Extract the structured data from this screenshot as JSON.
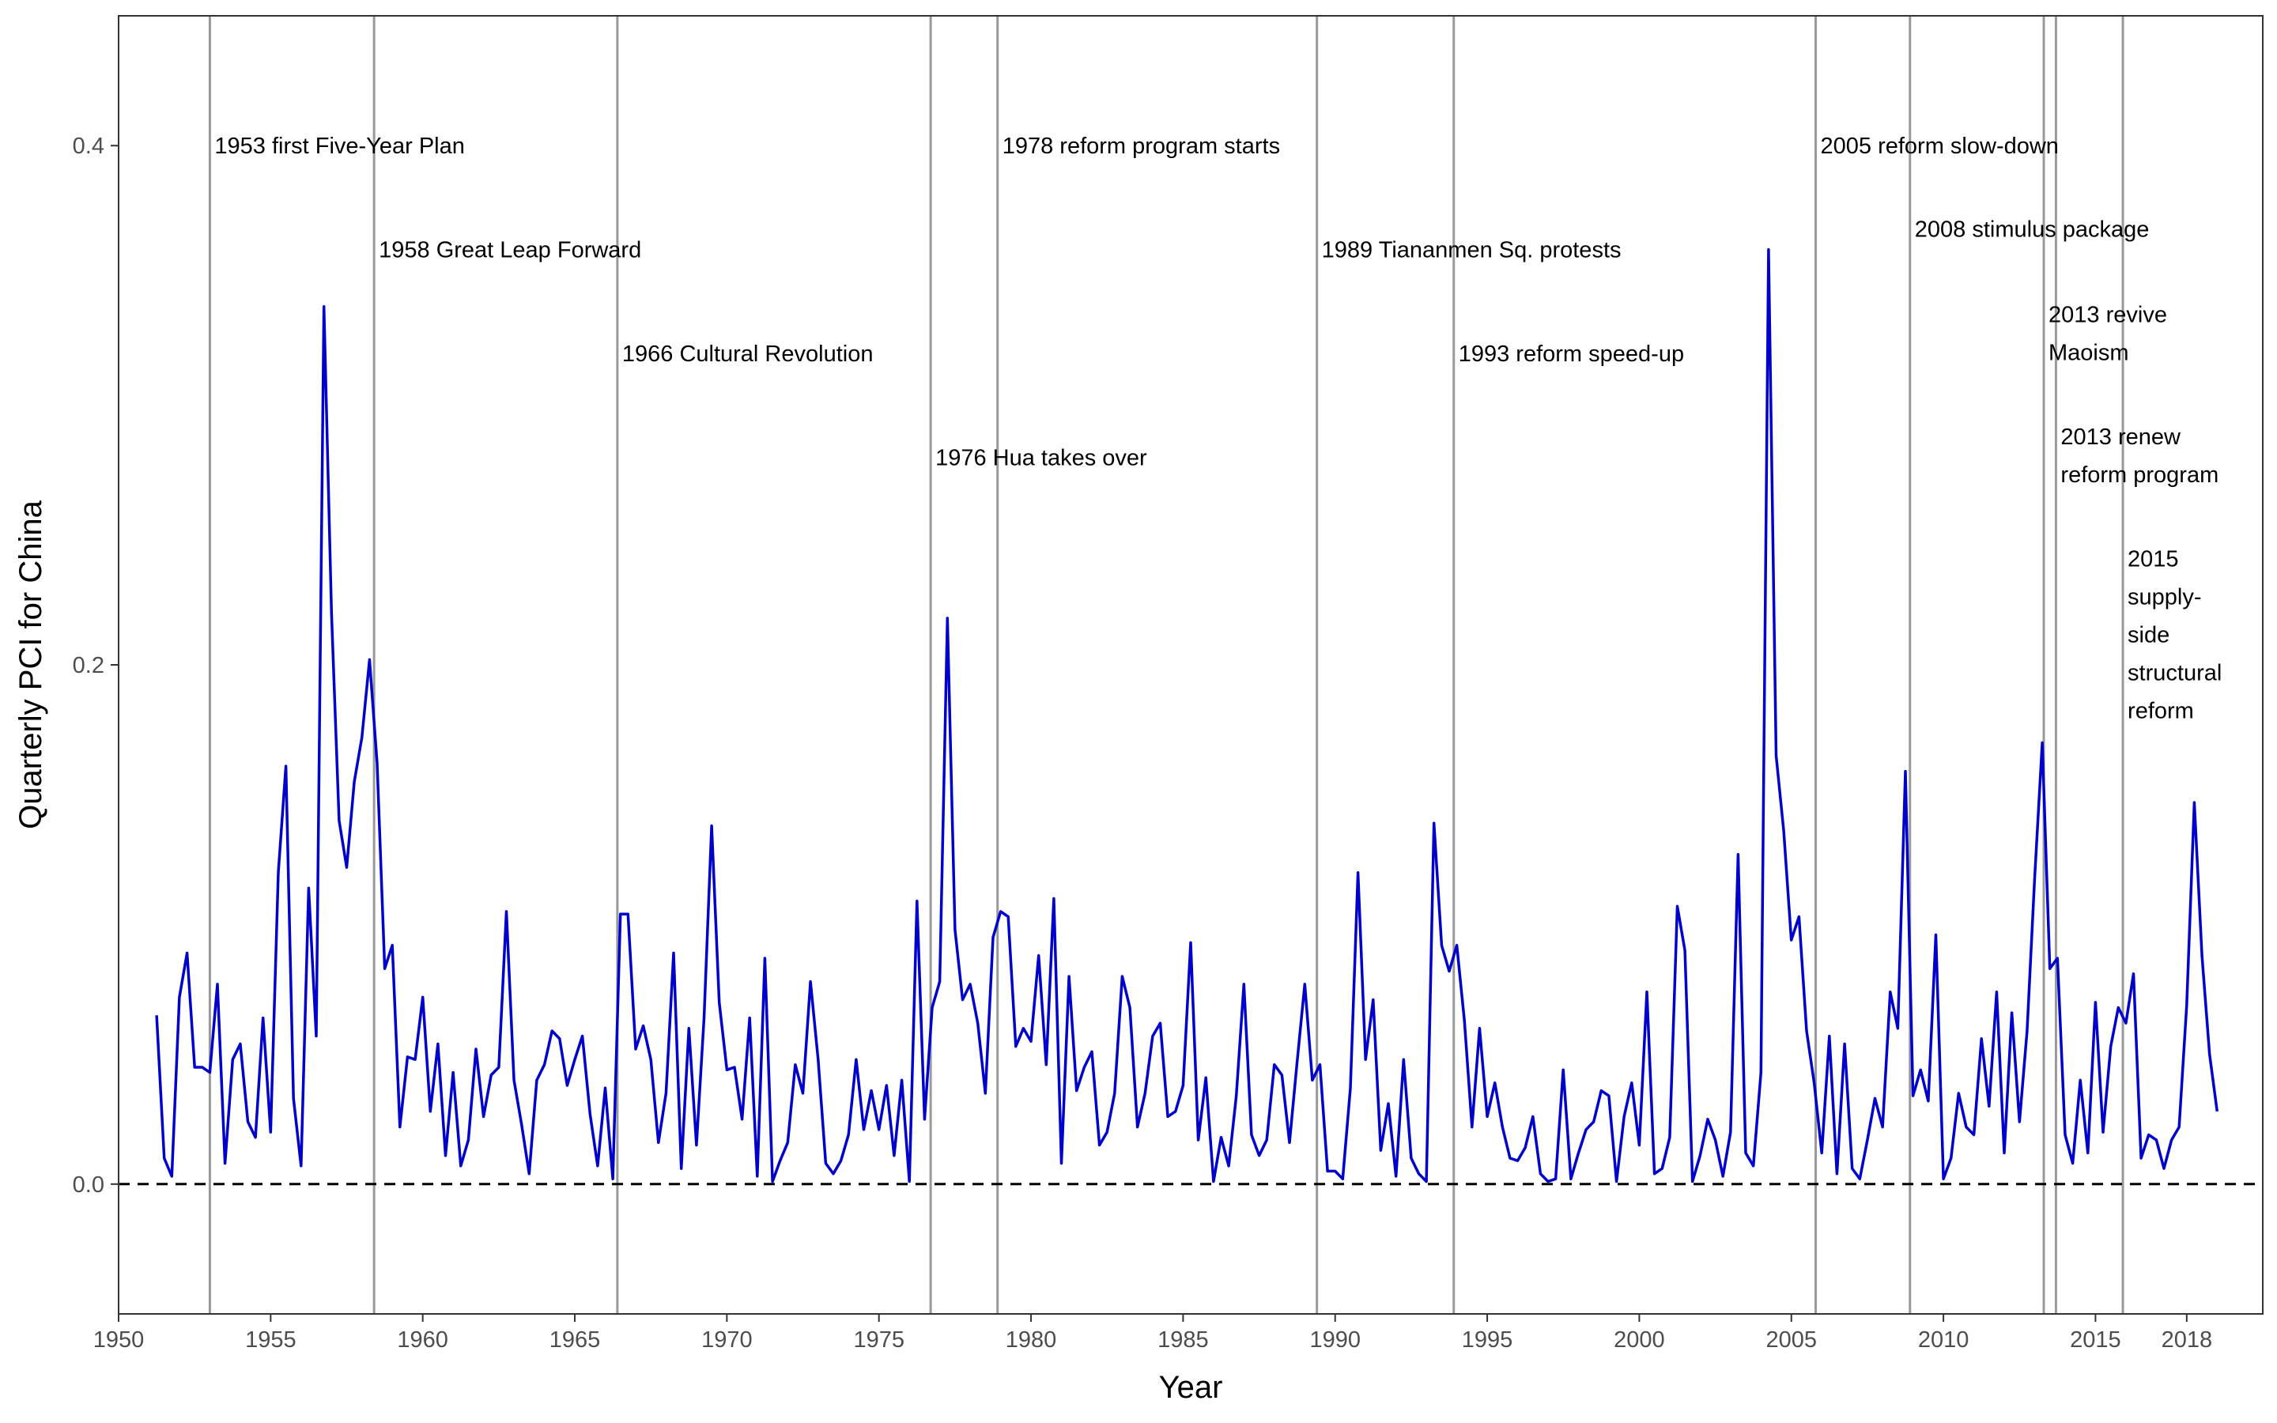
{
  "chart_data": {
    "type": "line",
    "title": "",
    "xlabel": "Year",
    "ylabel": "Quarterly PCI for China",
    "xlim": [
      1950,
      2020.5
    ],
    "ylim": [
      -0.05,
      0.45
    ],
    "x_ticks": [
      1950,
      1955,
      1960,
      1965,
      1970,
      1975,
      1980,
      1985,
      1990,
      1995,
      2000,
      2005,
      2010,
      2015,
      2018
    ],
    "y_ticks": [
      0.0,
      0.2,
      0.4
    ],
    "y_tick_labels": [
      "0.0",
      "0.2",
      "0.4"
    ],
    "grid": false,
    "reference_line": {
      "y": 0.0,
      "style": "dashed"
    },
    "events": [
      {
        "year": 1953.0,
        "lines": [
          "1953 first Five-Year Plan"
        ],
        "label_y": 0.4
      },
      {
        "year": 1958.4,
        "lines": [
          "1958 Great Leap Forward"
        ],
        "label_y": 0.36
      },
      {
        "year": 1966.4,
        "lines": [
          "1966 Cultural Revolution"
        ],
        "label_y": 0.32
      },
      {
        "year": 1976.7,
        "lines": [
          "1976 Hua takes over"
        ],
        "label_y": 0.28
      },
      {
        "year": 1978.9,
        "lines": [
          "1978 reform program starts"
        ],
        "label_y": 0.4
      },
      {
        "year": 1989.4,
        "lines": [
          "1989 Tiananmen Sq. protests"
        ],
        "label_y": 0.36
      },
      {
        "year": 1993.9,
        "lines": [
          "1993 reform speed-up"
        ],
        "label_y": 0.32
      },
      {
        "year": 2005.8,
        "lines": [
          "2005 reform slow-down"
        ],
        "label_y": 0.4
      },
      {
        "year": 2008.9,
        "lines": [
          "2008 stimulus package"
        ],
        "label_y": 0.368
      },
      {
        "year": 2013.3,
        "lines": [
          "2013 revive",
          "Maoism"
        ],
        "label_y": 0.335
      },
      {
        "year": 2013.7,
        "lines": [
          "2013 renew",
          "reform program"
        ],
        "label_y": 0.288
      },
      {
        "year": 2015.9,
        "lines": [
          "2015",
          "supply-",
          "side",
          "structural",
          "reform"
        ],
        "label_y": 0.241
      }
    ],
    "series": [
      {
        "color": "#0000CD",
        "x": [
          1951.25,
          1951.5,
          1951.75,
          1952.0,
          1952.25,
          1952.5,
          1952.75,
          1953.0,
          1953.25,
          1953.5,
          1953.75,
          1954.0,
          1954.25,
          1954.5,
          1954.75,
          1955.0,
          1955.25,
          1955.5,
          1955.75,
          1956.0,
          1956.25,
          1956.5,
          1956.75,
          1957.0,
          1957.25,
          1957.5,
          1957.75,
          1958.0,
          1958.25,
          1958.5,
          1958.75,
          1959.0,
          1959.25,
          1959.5,
          1959.75,
          1960.0,
          1960.25,
          1960.5,
          1960.75,
          1961.0,
          1961.25,
          1961.5,
          1961.75,
          1962.0,
          1962.25,
          1962.5,
          1962.75,
          1963.0,
          1963.25,
          1963.5,
          1963.75,
          1964.0,
          1964.25,
          1964.5,
          1964.75,
          1965.0,
          1965.25,
          1965.5,
          1965.75,
          1966.0,
          1966.25,
          1966.5,
          1966.75,
          1967.0,
          1967.25,
          1967.5,
          1967.75,
          1968.0,
          1968.25,
          1968.5,
          1968.75,
          1969.0,
          1969.25,
          1969.5,
          1969.75,
          1970.0,
          1970.25,
          1970.5,
          1970.75,
          1971.0,
          1971.25,
          1971.5,
          1971.75,
          1972.0,
          1972.25,
          1972.5,
          1972.75,
          1973.0,
          1973.25,
          1973.5,
          1973.75,
          1974.0,
          1974.25,
          1974.5,
          1974.75,
          1975.0,
          1975.25,
          1975.5,
          1975.75,
          1976.0,
          1976.25,
          1976.5,
          1976.75,
          1977.0,
          1977.25,
          1977.5,
          1977.75,
          1978.0,
          1978.25,
          1978.5,
          1978.75,
          1979.0,
          1979.25,
          1979.5,
          1979.75,
          1980.0,
          1980.25,
          1980.5,
          1980.75,
          1981.0,
          1981.25,
          1981.5,
          1981.75,
          1982.0,
          1982.25,
          1982.5,
          1982.75,
          1983.0,
          1983.25,
          1983.5,
          1983.75,
          1984.0,
          1984.25,
          1984.5,
          1984.75,
          1985.0,
          1985.25,
          1985.5,
          1985.75,
          1986.0,
          1986.25,
          1986.5,
          1986.75,
          1987.0,
          1987.25,
          1987.5,
          1987.75,
          1988.0,
          1988.25,
          1988.5,
          1988.75,
          1989.0,
          1989.25,
          1989.5,
          1989.75,
          1990.0,
          1990.25,
          1990.5,
          1990.75,
          1991.0,
          1991.25,
          1991.5,
          1991.75,
          1992.0,
          1992.25,
          1992.5,
          1992.75,
          1993.0,
          1993.25,
          1993.5,
          1993.75,
          1994.0,
          1994.25,
          1994.5,
          1994.75,
          1995.0,
          1995.25,
          1995.5,
          1995.75,
          1996.0,
          1996.25,
          1996.5,
          1996.75,
          1997.0,
          1997.25,
          1997.5,
          1997.75,
          1998.0,
          1998.25,
          1998.5,
          1998.75,
          1999.0,
          1999.25,
          1999.5,
          1999.75,
          2000.0,
          2000.25,
          2000.5,
          2000.75,
          2001.0,
          2001.25,
          2001.5,
          2001.75,
          2002.0,
          2002.25,
          2002.5,
          2002.75,
          2003.0,
          2003.25,
          2003.5,
          2003.75,
          2004.0,
          2004.25,
          2004.5,
          2004.75,
          2005.0,
          2005.25,
          2005.5,
          2005.75,
          2006.0,
          2006.25,
          2006.5,
          2006.75,
          2007.0,
          2007.25,
          2007.5,
          2007.75,
          2008.0,
          2008.25,
          2008.5,
          2008.75,
          2009.0,
          2009.25,
          2009.5,
          2009.75,
          2010.0,
          2010.25,
          2010.5,
          2010.75,
          2011.0,
          2011.25,
          2011.5,
          2011.75,
          2012.0,
          2012.25,
          2012.5,
          2012.75,
          2013.0,
          2013.25,
          2013.5,
          2013.75,
          2014.0,
          2014.25,
          2014.5,
          2014.75,
          2015.0,
          2015.25,
          2015.5,
          2015.75,
          2016.0,
          2016.25,
          2016.5,
          2016.75,
          2017.0,
          2017.25,
          2017.5,
          2017.75,
          2018.0,
          2018.25,
          2018.5,
          2018.75,
          2019.0
        ],
        "y": [
          0.065,
          0.01,
          0.003,
          0.072,
          0.089,
          0.045,
          0.045,
          0.043,
          0.077,
          0.008,
          0.048,
          0.054,
          0.024,
          0.018,
          0.064,
          0.02,
          0.12,
          0.161,
          0.033,
          0.007,
          0.114,
          0.057,
          0.338,
          0.22,
          0.14,
          0.122,
          0.155,
          0.172,
          0.202,
          0.162,
          0.083,
          0.092,
          0.022,
          0.049,
          0.048,
          0.072,
          0.028,
          0.054,
          0.011,
          0.043,
          0.007,
          0.017,
          0.052,
          0.026,
          0.042,
          0.045,
          0.105,
          0.04,
          0.023,
          0.004,
          0.04,
          0.046,
          0.059,
          0.056,
          0.038,
          0.048,
          0.057,
          0.027,
          0.007,
          0.037,
          0.002,
          0.104,
          0.104,
          0.052,
          0.061,
          0.048,
          0.016,
          0.035,
          0.089,
          0.006,
          0.06,
          0.015,
          0.064,
          0.138,
          0.07,
          0.044,
          0.045,
          0.025,
          0.064,
          0.003,
          0.087,
          0.001,
          0.009,
          0.016,
          0.046,
          0.035,
          0.078,
          0.048,
          0.008,
          0.004,
          0.009,
          0.019,
          0.048,
          0.021,
          0.036,
          0.021,
          0.038,
          0.011,
          0.04,
          0.001,
          0.109,
          0.025,
          0.068,
          0.078,
          0.218,
          0.098,
          0.071,
          0.077,
          0.062,
          0.035,
          0.095,
          0.105,
          0.103,
          0.053,
          0.06,
          0.055,
          0.088,
          0.046,
          0.11,
          0.008,
          0.08,
          0.036,
          0.045,
          0.051,
          0.015,
          0.02,
          0.035,
          0.08,
          0.068,
          0.022,
          0.035,
          0.057,
          0.062,
          0.026,
          0.028,
          0.038,
          0.093,
          0.017,
          0.041,
          0.001,
          0.018,
          0.007,
          0.034,
          0.077,
          0.019,
          0.011,
          0.017,
          0.046,
          0.042,
          0.016,
          0.047,
          0.077,
          0.04,
          0.046,
          0.005,
          0.005,
          0.002,
          0.037,
          0.12,
          0.048,
          0.071,
          0.013,
          0.031,
          0.003,
          0.048,
          0.01,
          0.004,
          0.001,
          0.139,
          0.092,
          0.082,
          0.092,
          0.063,
          0.022,
          0.06,
          0.026,
          0.039,
          0.022,
          0.01,
          0.009,
          0.014,
          0.026,
          0.004,
          0.001,
          0.002,
          0.044,
          0.002,
          0.012,
          0.021,
          0.024,
          0.036,
          0.034,
          0.001,
          0.026,
          0.039,
          0.015,
          0.074,
          0.004,
          0.006,
          0.018,
          0.107,
          0.09,
          0.001,
          0.011,
          0.025,
          0.017,
          0.003,
          0.02,
          0.127,
          0.012,
          0.007,
          0.043,
          0.36,
          0.165,
          0.136,
          0.094,
          0.103,
          0.059,
          0.039,
          0.012,
          0.057,
          0.004,
          0.054,
          0.006,
          0.002,
          0.017,
          0.033,
          0.022,
          0.074,
          0.06,
          0.159,
          0.034,
          0.044,
          0.032,
          0.096,
          0.002,
          0.01,
          0.035,
          0.022,
          0.019,
          0.056,
          0.03,
          0.074,
          0.012,
          0.066,
          0.024,
          0.059,
          0.118,
          0.17,
          0.083,
          0.087,
          0.019,
          0.008,
          0.04,
          0.012,
          0.07,
          0.02,
          0.053,
          0.068,
          0.062,
          0.081,
          0.01,
          0.019,
          0.017,
          0.006,
          0.017,
          0.022,
          0.069,
          0.147,
          0.088,
          0.05,
          0.028
        ]
      }
    ]
  }
}
